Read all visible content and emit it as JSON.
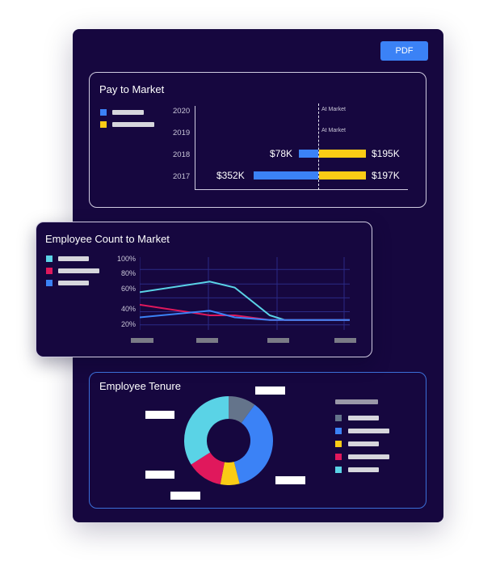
{
  "toolbar": {
    "pdf_label": "PDF"
  },
  "pay_to_market": {
    "title": "Pay to Market",
    "legend_colors": [
      "#3b82f6",
      "#facc15"
    ],
    "years": [
      "2020",
      "2019",
      "2018",
      "2017"
    ],
    "marker_label": "At Market",
    "rows": [
      {
        "year": "2018",
        "below_label": "$78K",
        "above_label": "$195K"
      },
      {
        "year": "2017",
        "below_label": "$352K",
        "above_label": "$197K"
      }
    ]
  },
  "employee_count": {
    "title": "Employee Count to Market",
    "legend_colors": [
      "#5ad3e6",
      "#e0185c",
      "#3b82f6"
    ]
  },
  "employee_tenure": {
    "title": "Employee Tenure",
    "legend_colors": [
      "#64748b",
      "#3b82f6",
      "#facc15",
      "#e0185c",
      "#5ad3e6"
    ]
  },
  "chart_data": [
    {
      "type": "bar",
      "title": "Pay to Market",
      "categories": [
        "2020",
        "2019",
        "2018",
        "2017"
      ],
      "annotations": [
        "At Market",
        "At Market"
      ],
      "series": [
        {
          "values": [
            null,
            null,
            -78,
            -352
          ]
        },
        {
          "values": [
            null,
            null,
            195,
            197
          ]
        }
      ],
      "data_labels": {
        "2018": [
          "$78K",
          "$195K"
        ],
        "2017": [
          "$352K",
          "$197K"
        ]
      }
    },
    {
      "type": "line",
      "title": "Employee Count to Market",
      "y_tick_labels": [
        "100%",
        "80%",
        "60%",
        "40%",
        "20%"
      ],
      "ylim": [
        0,
        110
      ],
      "x": [
        0,
        1.4,
        1.9,
        2.6,
        2.9,
        4.2
      ],
      "series": [
        {
          "values": [
            57,
            73,
            64,
            22,
            15,
            15
          ]
        },
        {
          "values": [
            38,
            22,
            22,
            15,
            15,
            15
          ]
        },
        {
          "values": [
            19,
            29,
            19,
            15,
            15,
            15
          ]
        }
      ]
    },
    {
      "type": "pie",
      "title": "Employee Tenure",
      "values": [
        10,
        36,
        7,
        13,
        34
      ]
    }
  ]
}
